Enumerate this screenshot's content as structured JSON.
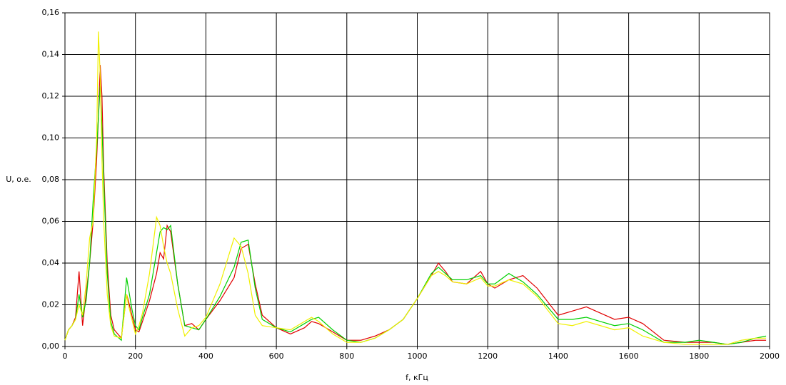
{
  "chart_data": {
    "type": "line",
    "xlabel": "f, кГц",
    "ylabel": "U, о.е.",
    "xlim": [
      0,
      2000
    ],
    "xticks": [
      0,
      200,
      400,
      600,
      800,
      1000,
      1200,
      1400,
      1600,
      1800,
      2000
    ],
    "ylim": [
      0,
      0.16
    ],
    "yticks": [
      {
        "value": 0,
        "label": "0,00"
      },
      {
        "value": 0.02,
        "label": "0,02"
      },
      {
        "value": 0.04,
        "label": "0,04"
      },
      {
        "value": 0.06,
        "label": "0,06"
      },
      {
        "value": 0.08,
        "label": "0,08"
      },
      {
        "value": 0.1,
        "label": "0,10"
      },
      {
        "value": 0.12,
        "label": "0,12"
      },
      {
        "value": 0.14,
        "label": "0,14"
      },
      {
        "value": 0.16,
        "label": "0,16"
      }
    ],
    "grid": true,
    "x": [
      0,
      10,
      20,
      30,
      40,
      50,
      60,
      70,
      80,
      90,
      95,
      100,
      105,
      110,
      120,
      130,
      140,
      160,
      175,
      180,
      190,
      200,
      210,
      220,
      240,
      260,
      270,
      280,
      290,
      300,
      320,
      340,
      360,
      380,
      400,
      440,
      480,
      500,
      520,
      540,
      560,
      600,
      640,
      680,
      700,
      720,
      760,
      800,
      840,
      880,
      920,
      960,
      1000,
      1040,
      1060,
      1080,
      1100,
      1140,
      1180,
      1200,
      1220,
      1260,
      1300,
      1340,
      1400,
      1440,
      1480,
      1520,
      1560,
      1600,
      1640,
      1700,
      1760,
      1800,
      1840,
      1880,
      1920,
      1960,
      1990
    ],
    "series": [
      {
        "color": "#e00000",
        "values": [
          0.003,
          0.008,
          0.01,
          0.014,
          0.036,
          0.01,
          0.025,
          0.04,
          0.06,
          0.09,
          0.11,
          0.135,
          0.12,
          0.085,
          0.04,
          0.015,
          0.008,
          0.004,
          0.025,
          0.022,
          0.015,
          0.008,
          0.007,
          0.012,
          0.022,
          0.035,
          0.045,
          0.042,
          0.058,
          0.055,
          0.03,
          0.01,
          0.011,
          0.008,
          0.013,
          0.022,
          0.033,
          0.047,
          0.049,
          0.03,
          0.015,
          0.009,
          0.006,
          0.009,
          0.012,
          0.011,
          0.007,
          0.003,
          0.003,
          0.005,
          0.008,
          0.013,
          0.023,
          0.034,
          0.04,
          0.036,
          0.031,
          0.03,
          0.036,
          0.03,
          0.028,
          0.032,
          0.034,
          0.028,
          0.015,
          0.017,
          0.019,
          0.016,
          0.013,
          0.014,
          0.011,
          0.003,
          0.002,
          0.002,
          0.002,
          0.001,
          0.002,
          0.003,
          0.003
        ]
      },
      {
        "color": "#00d000",
        "values": [
          0.003,
          0.008,
          0.01,
          0.013,
          0.025,
          0.014,
          0.022,
          0.04,
          0.07,
          0.095,
          0.11,
          0.125,
          0.105,
          0.08,
          0.035,
          0.012,
          0.006,
          0.003,
          0.033,
          0.028,
          0.018,
          0.01,
          0.008,
          0.014,
          0.025,
          0.045,
          0.055,
          0.057,
          0.056,
          0.058,
          0.03,
          0.01,
          0.009,
          0.008,
          0.013,
          0.024,
          0.038,
          0.05,
          0.051,
          0.028,
          0.013,
          0.009,
          0.007,
          0.011,
          0.013,
          0.014,
          0.008,
          0.003,
          0.002,
          0.004,
          0.008,
          0.013,
          0.023,
          0.035,
          0.038,
          0.035,
          0.032,
          0.032,
          0.034,
          0.03,
          0.03,
          0.035,
          0.031,
          0.025,
          0.013,
          0.013,
          0.014,
          0.012,
          0.01,
          0.011,
          0.008,
          0.002,
          0.002,
          0.003,
          0.002,
          0.001,
          0.002,
          0.004,
          0.005
        ]
      },
      {
        "color": "#f0f000",
        "values": [
          0.003,
          0.008,
          0.01,
          0.013,
          0.02,
          0.015,
          0.03,
          0.052,
          0.06,
          0.1,
          0.151,
          0.13,
          0.09,
          0.06,
          0.025,
          0.01,
          0.005,
          0.004,
          0.025,
          0.02,
          0.013,
          0.006,
          0.01,
          0.016,
          0.035,
          0.062,
          0.058,
          0.048,
          0.04,
          0.035,
          0.018,
          0.005,
          0.009,
          0.01,
          0.014,
          0.03,
          0.052,
          0.048,
          0.035,
          0.015,
          0.01,
          0.009,
          0.008,
          0.012,
          0.014,
          0.012,
          0.006,
          0.002,
          0.002,
          0.004,
          0.008,
          0.013,
          0.023,
          0.034,
          0.036,
          0.034,
          0.031,
          0.03,
          0.033,
          0.029,
          0.029,
          0.032,
          0.03,
          0.024,
          0.011,
          0.01,
          0.012,
          0.01,
          0.008,
          0.009,
          0.005,
          0.002,
          0.001,
          0.001,
          0.001,
          0.001,
          0.003,
          0.004,
          0.004
        ]
      }
    ]
  }
}
